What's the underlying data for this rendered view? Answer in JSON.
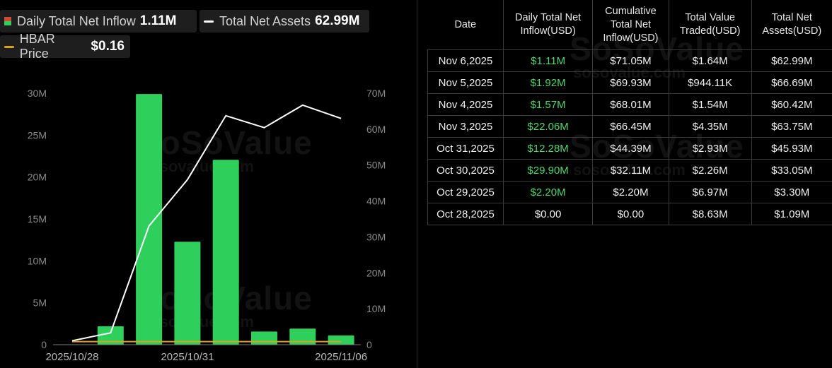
{
  "legend": {
    "daily_label": "Daily Total Net Inflow",
    "daily_value": "1.11M",
    "assets_label": "Total Net Assets",
    "assets_value": "62.99M",
    "price_label": "HBAR Price",
    "price_value": "$0.16"
  },
  "colors": {
    "bar": "#2fcf5c",
    "bar_negative": "#d04a3c",
    "assets_line": "#ffffff",
    "price_line": "#d9a21b"
  },
  "watermark": {
    "brand": "SoSoValue",
    "url": "sosovalue.com"
  },
  "chart_data": {
    "type": "bar",
    "categories": [
      "2025/10/28",
      "2025/10/29",
      "2025/10/30",
      "2025/10/31",
      "2025/11/03",
      "2025/11/04",
      "2025/11/05",
      "2025/11/06"
    ],
    "x_tick_labels": [
      "2025/10/28",
      "2025/10/31",
      "2025/11/06"
    ],
    "series": [
      {
        "name": "Daily Total Net Inflow",
        "axis": "left",
        "kind": "bar",
        "values": [
          0,
          2.2,
          29.9,
          12.28,
          22.06,
          1.57,
          1.92,
          1.11
        ]
      },
      {
        "name": "Total Net Assets",
        "axis": "right",
        "kind": "line",
        "values": [
          1.09,
          3.3,
          33.05,
          45.93,
          63.75,
          60.42,
          66.69,
          62.99
        ]
      },
      {
        "name": "HBAR Price",
        "axis": "hidden",
        "kind": "line",
        "values": [
          0.16,
          0.16,
          0.16,
          0.16,
          0.16,
          0.16,
          0.16,
          0.16
        ]
      }
    ],
    "left_axis": {
      "ticks": [
        0,
        5,
        10,
        15,
        20,
        25,
        30
      ],
      "labels": [
        "0",
        "5M",
        "10M",
        "15M",
        "20M",
        "25M",
        "30M"
      ],
      "range": [
        0,
        30
      ]
    },
    "right_axis": {
      "ticks": [
        0,
        10,
        20,
        30,
        40,
        50,
        60,
        70
      ],
      "labels": [
        "0",
        "10M",
        "20M",
        "30M",
        "40M",
        "50M",
        "60M",
        "70M"
      ],
      "range": [
        0,
        70
      ]
    },
    "grid": false
  },
  "table": {
    "headers": [
      "Date",
      "Daily Total Net\nInflow(USD)",
      "Cumulative\nTotal Net\nInflow(USD)",
      "Total Value\nTraded(USD)",
      "Total Net\nAssets(USD)"
    ],
    "rows": [
      [
        "Nov 6,2025",
        "$1.11M",
        "$71.05M",
        "$1.64M",
        "$62.99M"
      ],
      [
        "Nov 5,2025",
        "$1.92M",
        "$69.93M",
        "$944.11K",
        "$66.69M"
      ],
      [
        "Nov 4,2025",
        "$1.57M",
        "$68.01M",
        "$1.54M",
        "$60.42M"
      ],
      [
        "Nov 3,2025",
        "$22.06M",
        "$66.45M",
        "$4.35M",
        "$63.75M"
      ],
      [
        "Oct 31,2025",
        "$12.28M",
        "$44.39M",
        "$2.93M",
        "$45.93M"
      ],
      [
        "Oct 30,2025",
        "$29.90M",
        "$32.11M",
        "$2.26M",
        "$33.05M"
      ],
      [
        "Oct 29,2025",
        "$2.20M",
        "$2.20M",
        "$6.97M",
        "$3.30M"
      ],
      [
        "Oct 28,2025",
        "$0.00",
        "$0.00",
        "$8.63M",
        "$1.09M"
      ]
    ]
  }
}
